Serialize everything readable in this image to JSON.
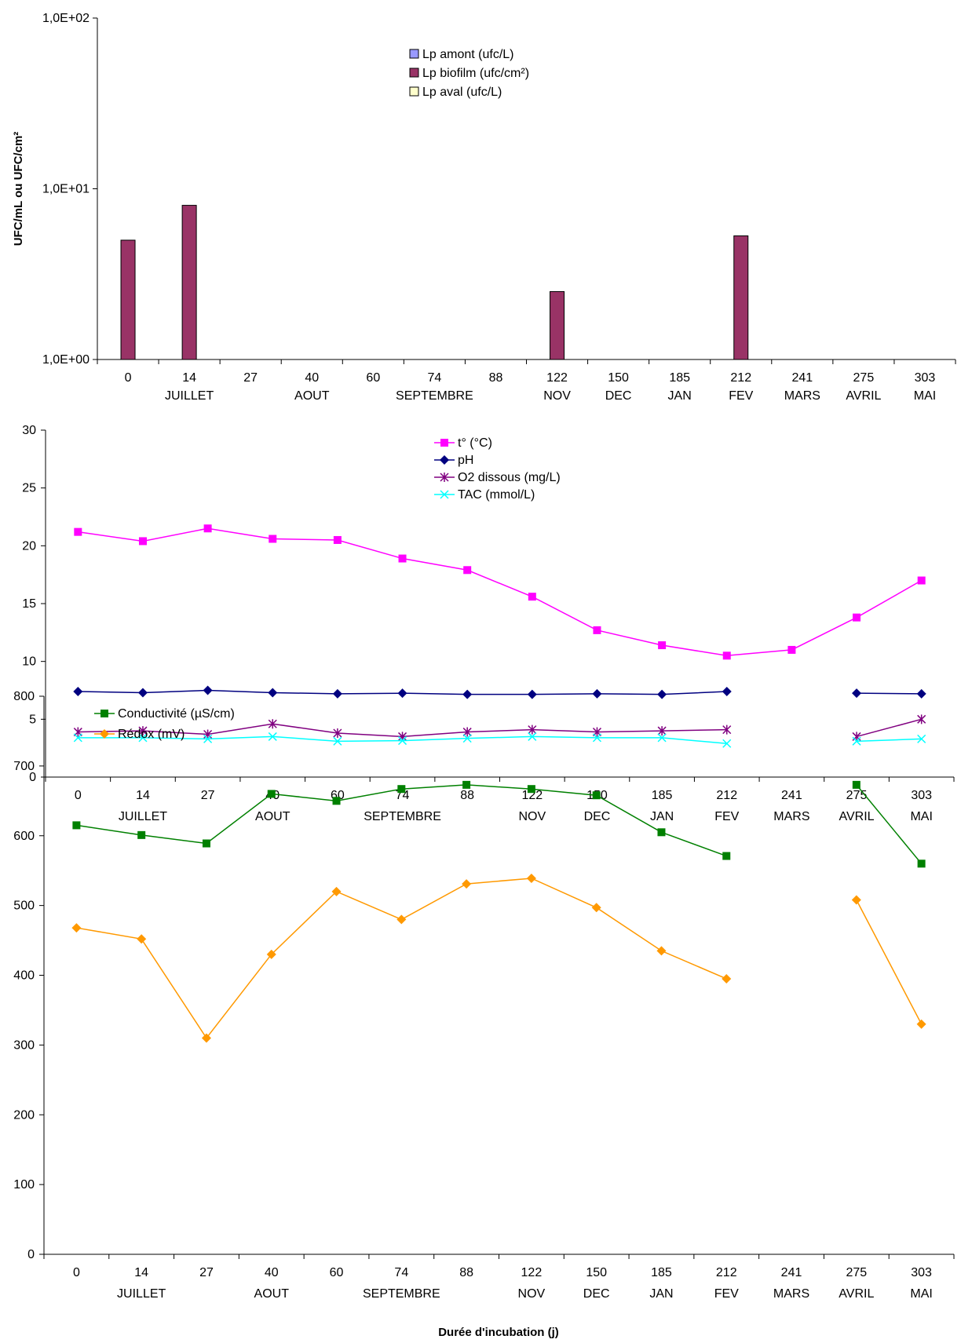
{
  "chart_data": [
    {
      "type": "bar",
      "scale": "log",
      "ylabel": "UFC/mL ou UFC/cm²",
      "ylim": [
        1,
        100
      ],
      "y_ticks": [
        "1,0E+00",
        "1,0E+01",
        "1,0E+02"
      ],
      "categories": [
        "0",
        "14",
        "27",
        "40",
        "60",
        "74",
        "88",
        "122",
        "150",
        "185",
        "212",
        "241",
        "275",
        "303"
      ],
      "months": [
        "",
        "JUILLET",
        "",
        "AOUT",
        "",
        "SEPTEMBRE",
        "",
        "NOV",
        "DEC",
        "JAN",
        "FEV",
        "MARS",
        "AVRIL",
        "MAI"
      ],
      "legend_position": "top-center",
      "series": [
        {
          "name": "Lp amont (ufc/L)",
          "color": "#9999ff",
          "values": [
            null,
            null,
            null,
            null,
            null,
            null,
            null,
            null,
            null,
            null,
            null,
            null,
            null,
            null
          ]
        },
        {
          "name": "Lp biofilm (ufc/cm²)",
          "color": "#993366",
          "values": [
            5.0,
            8.0,
            null,
            null,
            null,
            null,
            null,
            2.5,
            null,
            null,
            5.3,
            null,
            null,
            null
          ]
        },
        {
          "name": "Lp aval (ufc/L)",
          "color": "#ffffcc",
          "values": [
            null,
            null,
            null,
            null,
            null,
            null,
            null,
            null,
            null,
            null,
            null,
            null,
            null,
            null
          ]
        }
      ]
    },
    {
      "type": "line",
      "ylim": [
        0,
        30
      ],
      "y_ticks": [
        "0",
        "5",
        "10",
        "15",
        "20",
        "25",
        "30"
      ],
      "categories": [
        "0",
        "14",
        "27",
        "40",
        "60",
        "74",
        "88",
        "122",
        "150",
        "185",
        "212",
        "241",
        "275",
        "303"
      ],
      "months": [
        "",
        "JUILLET",
        "",
        "AOUT",
        "",
        "SEPTEMBRE",
        "",
        "NOV",
        "DEC",
        "JAN",
        "FEV",
        "MARS",
        "AVRIL",
        "MAI"
      ],
      "legend_position": "top-center",
      "series": [
        {
          "name": "t° (°C)",
          "color": "#ff00ff",
          "marker": "square",
          "values": [
            21.2,
            20.4,
            21.5,
            20.6,
            20.5,
            18.9,
            17.9,
            15.6,
            12.7,
            11.4,
            10.5,
            11.0,
            13.8,
            17.0
          ]
        },
        {
          "name": "pH",
          "color": "#000080",
          "marker": "diamond",
          "values": [
            7.4,
            7.3,
            7.5,
            7.3,
            7.2,
            7.25,
            7.15,
            7.15,
            7.2,
            7.15,
            7.4,
            null,
            7.25,
            7.2
          ]
        },
        {
          "name": "O2 dissous (mg/L)",
          "color": "#800080",
          "marker": "star",
          "values": [
            3.9,
            4.0,
            3.7,
            4.6,
            3.8,
            3.5,
            3.9,
            4.1,
            3.9,
            4.0,
            4.1,
            null,
            3.5,
            5.0
          ]
        },
        {
          "name": "TAC (mmol/L)",
          "color": "#00ffff",
          "marker": "x",
          "values": [
            3.4,
            3.4,
            3.3,
            3.5,
            3.1,
            3.15,
            3.35,
            3.5,
            3.4,
            3.4,
            2.9,
            null,
            3.1,
            3.3
          ]
        }
      ]
    },
    {
      "type": "line",
      "ylim": [
        0,
        800
      ],
      "y_ticks": [
        "0",
        "100",
        "200",
        "300",
        "400",
        "500",
        "600",
        "700",
        "800"
      ],
      "categories": [
        "0",
        "14",
        "27",
        "40",
        "60",
        "74",
        "88",
        "122",
        "150",
        "185",
        "212",
        "241",
        "275",
        "303"
      ],
      "months": [
        "",
        "JUILLET",
        "",
        "AOUT",
        "",
        "SEPTEMBRE",
        "",
        "NOV",
        "DEC",
        "JAN",
        "FEV",
        "MARS",
        "AVRIL",
        "MAI"
      ],
      "xlabel": "Durée d'incubation (j)",
      "legend_position": "top-left",
      "series": [
        {
          "name": "Conductivité (µS/cm)",
          "color": "#008000",
          "marker": "square",
          "values": [
            615,
            601,
            589,
            660,
            650,
            667,
            673,
            667,
            658,
            605,
            571,
            null,
            673,
            560
          ]
        },
        {
          "name": "Rédox (mV)",
          "color": "#ff9900",
          "marker": "diamond",
          "values": [
            468,
            452,
            310,
            430,
            520,
            480,
            531,
            539,
            497,
            435,
            395,
            null,
            508,
            330
          ]
        }
      ]
    }
  ]
}
